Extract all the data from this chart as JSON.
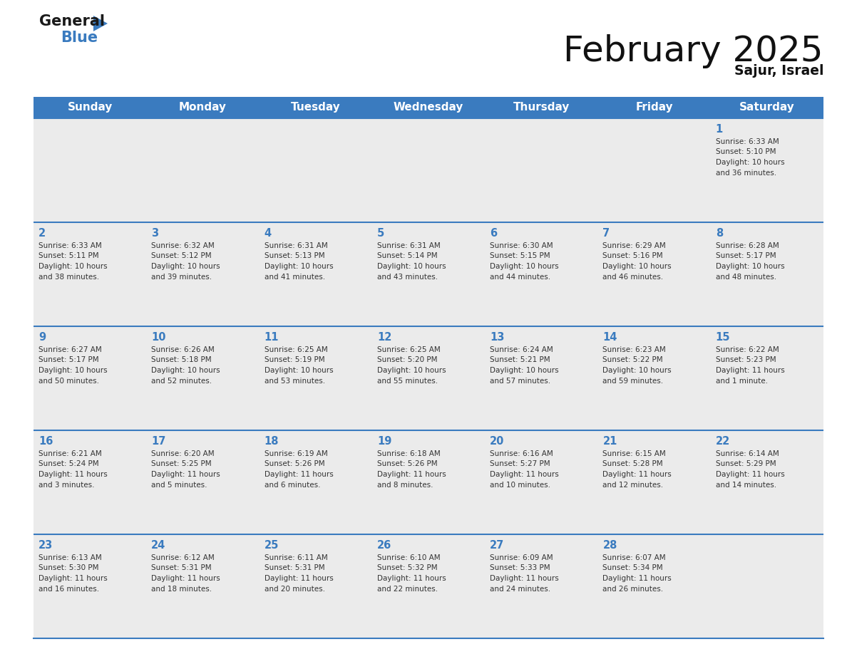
{
  "title": "February 2025",
  "subtitle": "Sajur, Israel",
  "header_color": "#3a7bbf",
  "header_text_color": "#ffffff",
  "day_names": [
    "Sunday",
    "Monday",
    "Tuesday",
    "Wednesday",
    "Thursday",
    "Friday",
    "Saturday"
  ],
  "cell_bg_color": "#ebebeb",
  "day_number_color": "#3a7bbf",
  "text_color": "#333333",
  "line_color": "#3a7bbf",
  "calendar": [
    [
      null,
      null,
      null,
      null,
      null,
      null,
      1
    ],
    [
      2,
      3,
      4,
      5,
      6,
      7,
      8
    ],
    [
      9,
      10,
      11,
      12,
      13,
      14,
      15
    ],
    [
      16,
      17,
      18,
      19,
      20,
      21,
      22
    ],
    [
      23,
      24,
      25,
      26,
      27,
      28,
      null
    ]
  ],
  "sunrise": {
    "1": "6:33 AM",
    "2": "6:33 AM",
    "3": "6:32 AM",
    "4": "6:31 AM",
    "5": "6:31 AM",
    "6": "6:30 AM",
    "7": "6:29 AM",
    "8": "6:28 AM",
    "9": "6:27 AM",
    "10": "6:26 AM",
    "11": "6:25 AM",
    "12": "6:25 AM",
    "13": "6:24 AM",
    "14": "6:23 AM",
    "15": "6:22 AM",
    "16": "6:21 AM",
    "17": "6:20 AM",
    "18": "6:19 AM",
    "19": "6:18 AM",
    "20": "6:16 AM",
    "21": "6:15 AM",
    "22": "6:14 AM",
    "23": "6:13 AM",
    "24": "6:12 AM",
    "25": "6:11 AM",
    "26": "6:10 AM",
    "27": "6:09 AM",
    "28": "6:07 AM"
  },
  "sunset": {
    "1": "5:10 PM",
    "2": "5:11 PM",
    "3": "5:12 PM",
    "4": "5:13 PM",
    "5": "5:14 PM",
    "6": "5:15 PM",
    "7": "5:16 PM",
    "8": "5:17 PM",
    "9": "5:17 PM",
    "10": "5:18 PM",
    "11": "5:19 PM",
    "12": "5:20 PM",
    "13": "5:21 PM",
    "14": "5:22 PM",
    "15": "5:23 PM",
    "16": "5:24 PM",
    "17": "5:25 PM",
    "18": "5:26 PM",
    "19": "5:26 PM",
    "20": "5:27 PM",
    "21": "5:28 PM",
    "22": "5:29 PM",
    "23": "5:30 PM",
    "24": "5:31 PM",
    "25": "5:31 PM",
    "26": "5:32 PM",
    "27": "5:33 PM",
    "28": "5:34 PM"
  },
  "daylight": {
    "1": [
      "10 hours",
      "and 36 minutes."
    ],
    "2": [
      "10 hours",
      "and 38 minutes."
    ],
    "3": [
      "10 hours",
      "and 39 minutes."
    ],
    "4": [
      "10 hours",
      "and 41 minutes."
    ],
    "5": [
      "10 hours",
      "and 43 minutes."
    ],
    "6": [
      "10 hours",
      "and 44 minutes."
    ],
    "7": [
      "10 hours",
      "and 46 minutes."
    ],
    "8": [
      "10 hours",
      "and 48 minutes."
    ],
    "9": [
      "10 hours",
      "and 50 minutes."
    ],
    "10": [
      "10 hours",
      "and 52 minutes."
    ],
    "11": [
      "10 hours",
      "and 53 minutes."
    ],
    "12": [
      "10 hours",
      "and 55 minutes."
    ],
    "13": [
      "10 hours",
      "and 57 minutes."
    ],
    "14": [
      "10 hours",
      "and 59 minutes."
    ],
    "15": [
      "11 hours",
      "and 1 minute."
    ],
    "16": [
      "11 hours",
      "and 3 minutes."
    ],
    "17": [
      "11 hours",
      "and 5 minutes."
    ],
    "18": [
      "11 hours",
      "and 6 minutes."
    ],
    "19": [
      "11 hours",
      "and 8 minutes."
    ],
    "20": [
      "11 hours",
      "and 10 minutes."
    ],
    "21": [
      "11 hours",
      "and 12 minutes."
    ],
    "22": [
      "11 hours",
      "and 14 minutes."
    ],
    "23": [
      "11 hours",
      "and 16 minutes."
    ],
    "24": [
      "11 hours",
      "and 18 minutes."
    ],
    "25": [
      "11 hours",
      "and 20 minutes."
    ],
    "26": [
      "11 hours",
      "and 22 minutes."
    ],
    "27": [
      "11 hours",
      "and 24 minutes."
    ],
    "28": [
      "11 hours",
      "and 26 minutes."
    ]
  }
}
